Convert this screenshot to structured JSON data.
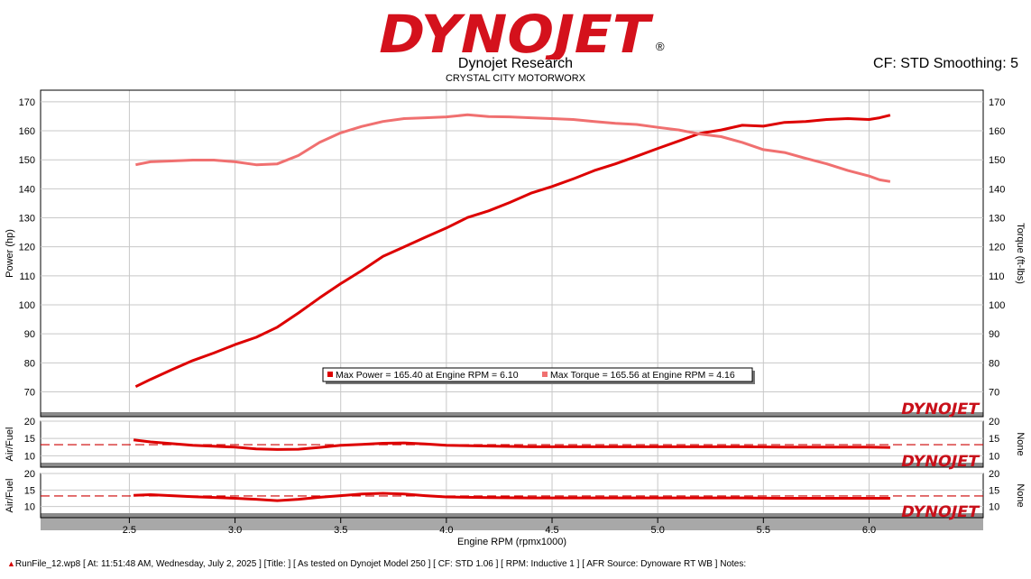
{
  "header": {
    "brand": "DYNOJET",
    "company": "Dynojet Research",
    "shop": "CRYSTAL CITY MOTORWORX",
    "cf_smoothing": "CF: STD Smoothing: 5",
    "watermark": "DYNOJET"
  },
  "footer": {
    "text": "RunFile_12.wp8 [ At: 11:51:48 AM, Wednesday, July 2, 2025 ] [Title: ]  [ As tested on Dynojet Model 250 ] [ CF: STD 1.06 ] [ RPM: Inductive 1 ] [ AFR Source: Dynoware RT WB ] Notes:"
  },
  "colors": {
    "power": "#dd0000",
    "torque": "#f07070",
    "afr": "#dd0000",
    "reference": "#cc0000",
    "brand_red": "#d4111c"
  },
  "chart_data": [
    {
      "type": "line",
      "id": "power-torque",
      "xlabel": "Engine RPM (rpmx1000)",
      "ylabel": "Power (hp)",
      "y2label": "Torque (ft-lbs)",
      "xlim": [
        2.08,
        6.54
      ],
      "ylim": [
        63,
        174
      ],
      "y2lim": [
        63,
        174
      ],
      "xticks": [
        2.5,
        3.0,
        3.5,
        4.0,
        4.5,
        5.0,
        5.5,
        6.0
      ],
      "xtick_labels": [
        "2.5",
        "3.0",
        "3.5",
        "4.0",
        "4.5",
        "5.0",
        "5.5",
        "6.0"
      ],
      "yticks": [
        70,
        80,
        90,
        100,
        110,
        120,
        130,
        140,
        150,
        160,
        170
      ],
      "grid": true,
      "legend": "bottom-center",
      "legend_items": [
        "Max Power = 165.40 at Engine RPM = 6.10",
        "Max Torque = 165.56 at Engine RPM = 4.16"
      ],
      "series": [
        {
          "key": "power",
          "x": [
            2.53,
            2.6,
            2.7,
            2.8,
            2.9,
            3.0,
            3.1,
            3.2,
            3.3,
            3.4,
            3.5,
            3.6,
            3.7,
            3.8,
            3.9,
            4.0,
            4.1,
            4.2,
            4.3,
            4.4,
            4.5,
            4.6,
            4.7,
            4.8,
            4.9,
            5.0,
            5.1,
            5.2,
            5.3,
            5.4,
            5.5,
            5.6,
            5.7,
            5.8,
            5.9,
            6.0,
            6.05,
            6.1
          ],
          "values": [
            71.8,
            74.3,
            77.6,
            80.8,
            83.4,
            86.3,
            88.8,
            92.3,
            97.2,
            102.4,
            107.3,
            111.8,
            116.7,
            120.0,
            123.3,
            126.5,
            130.1,
            132.4,
            135.3,
            138.5,
            140.8,
            143.4,
            146.3,
            148.6,
            151.2,
            153.9,
            156.5,
            159.1,
            160.3,
            161.9,
            161.6,
            162.9,
            163.2,
            163.9,
            164.2,
            163.9,
            164.5,
            165.4
          ]
        },
        {
          "key": "torque",
          "x": [
            2.53,
            2.6,
            2.7,
            2.8,
            2.9,
            3.0,
            3.1,
            3.2,
            3.3,
            3.4,
            3.5,
            3.6,
            3.7,
            3.8,
            3.9,
            4.0,
            4.1,
            4.2,
            4.3,
            4.4,
            4.5,
            4.6,
            4.7,
            4.8,
            4.9,
            5.0,
            5.1,
            5.2,
            5.3,
            5.4,
            5.5,
            5.6,
            5.7,
            5.8,
            5.9,
            6.0,
            6.05,
            6.1
          ],
          "values": [
            148.3,
            149.3,
            149.6,
            149.9,
            149.9,
            149.3,
            148.3,
            148.6,
            151.5,
            156.0,
            159.3,
            161.5,
            163.2,
            164.2,
            164.5,
            164.8,
            165.5,
            164.9,
            164.8,
            164.5,
            164.2,
            163.9,
            163.2,
            162.6,
            162.2,
            161.2,
            160.3,
            158.9,
            158.0,
            156.0,
            153.5,
            152.5,
            150.5,
            148.6,
            146.3,
            144.4,
            143.1,
            142.5
          ]
        }
      ]
    },
    {
      "type": "line",
      "id": "afr-1",
      "ylabel": "Air/Fuel",
      "y2label": "None",
      "ylim": [
        8,
        20
      ],
      "yticks": [
        10,
        15,
        20
      ],
      "reference_line": 13.2,
      "series": [
        {
          "key": "afr",
          "x": [
            2.52,
            2.6,
            2.8,
            3.0,
            3.1,
            3.2,
            3.3,
            3.4,
            3.5,
            3.6,
            3.7,
            3.8,
            3.9,
            4.0,
            4.2,
            4.4,
            4.6,
            4.8,
            5.0,
            5.2,
            5.4,
            5.6,
            5.8,
            6.0,
            6.1
          ],
          "values": [
            14.6,
            14.0,
            13.0,
            12.5,
            12.0,
            11.8,
            11.9,
            12.4,
            13.0,
            13.3,
            13.6,
            13.7,
            13.4,
            13.0,
            12.8,
            12.6,
            12.6,
            12.6,
            12.6,
            12.6,
            12.6,
            12.5,
            12.5,
            12.5,
            12.4
          ]
        }
      ]
    },
    {
      "type": "line",
      "id": "afr-2",
      "ylabel": "Air/Fuel",
      "y2label": "None",
      "ylim": [
        8,
        20
      ],
      "yticks": [
        10,
        15,
        20
      ],
      "reference_line": 13.2,
      "series": [
        {
          "key": "afr",
          "x": [
            2.52,
            2.6,
            2.8,
            3.0,
            3.1,
            3.2,
            3.3,
            3.4,
            3.5,
            3.6,
            3.7,
            3.8,
            3.9,
            4.0,
            4.2,
            4.4,
            4.6,
            4.8,
            5.0,
            5.2,
            5.4,
            5.6,
            5.8,
            6.0,
            6.1
          ],
          "values": [
            13.4,
            13.6,
            13.0,
            12.5,
            12.2,
            11.8,
            12.2,
            12.8,
            13.3,
            13.8,
            14.0,
            13.8,
            13.3,
            12.9,
            12.7,
            12.6,
            12.6,
            12.6,
            12.6,
            12.6,
            12.6,
            12.5,
            12.5,
            12.5,
            12.5
          ]
        }
      ]
    }
  ]
}
